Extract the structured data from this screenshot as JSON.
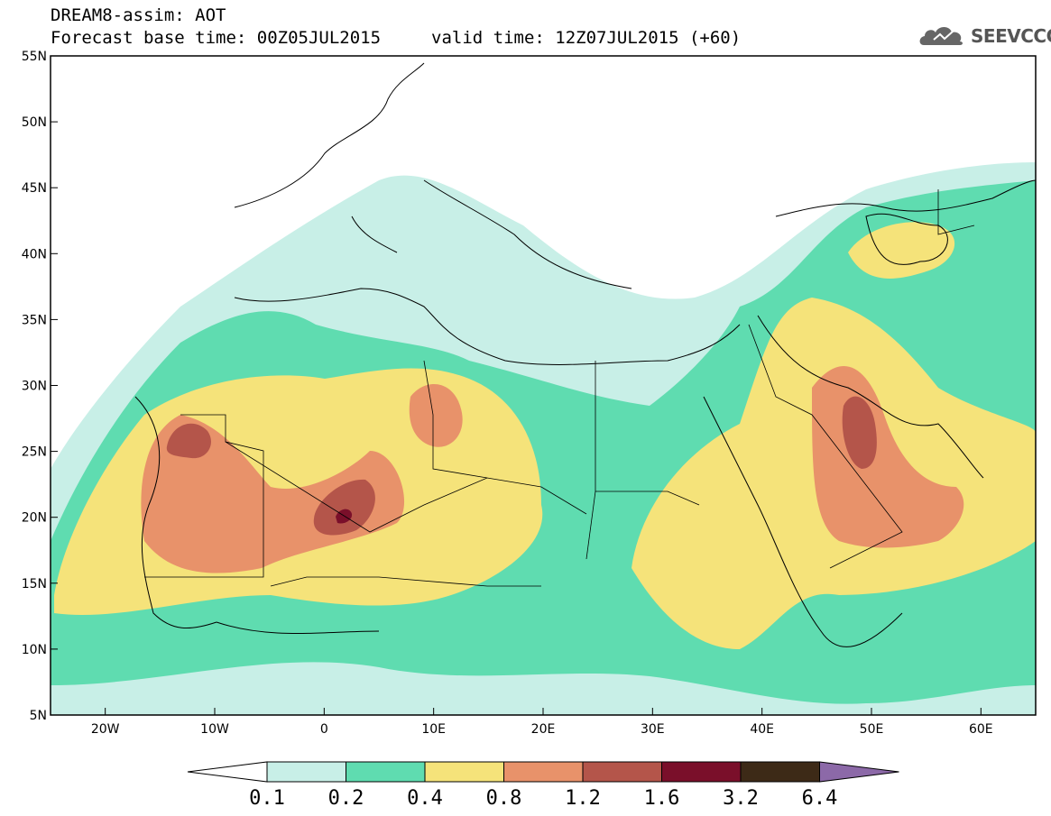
{
  "header": {
    "line1": "DREAM8-assim: AOT",
    "line2": "Forecast base time: 00Z05JUL2015",
    "line3": "valid time: 12Z07JUL2015 (+60)"
  },
  "logo": {
    "text": "SEEVCCC",
    "icon": "cloud-icon"
  },
  "axes": {
    "lat_labels": [
      "55N",
      "50N",
      "45N",
      "40N",
      "35N",
      "30N",
      "25N",
      "20N",
      "15N",
      "10N",
      "5N"
    ],
    "lon_labels": [
      "20W",
      "10W",
      "0",
      "10E",
      "20E",
      "30E",
      "40E",
      "50E",
      "60E"
    ],
    "lat_range": [
      5,
      55
    ],
    "lon_range": [
      -25,
      65
    ]
  },
  "legend": {
    "levels": [
      "0.1",
      "0.2",
      "0.4",
      "0.8",
      "1.2",
      "1.6",
      "3.2",
      "6.4"
    ],
    "colors": [
      "#ffffff",
      "#c8efe7",
      "#5fdcb0",
      "#f5e37a",
      "#e8926a",
      "#b4554a",
      "#7a0f2a",
      "#3d2a17",
      "#8c69a8"
    ]
  }
}
